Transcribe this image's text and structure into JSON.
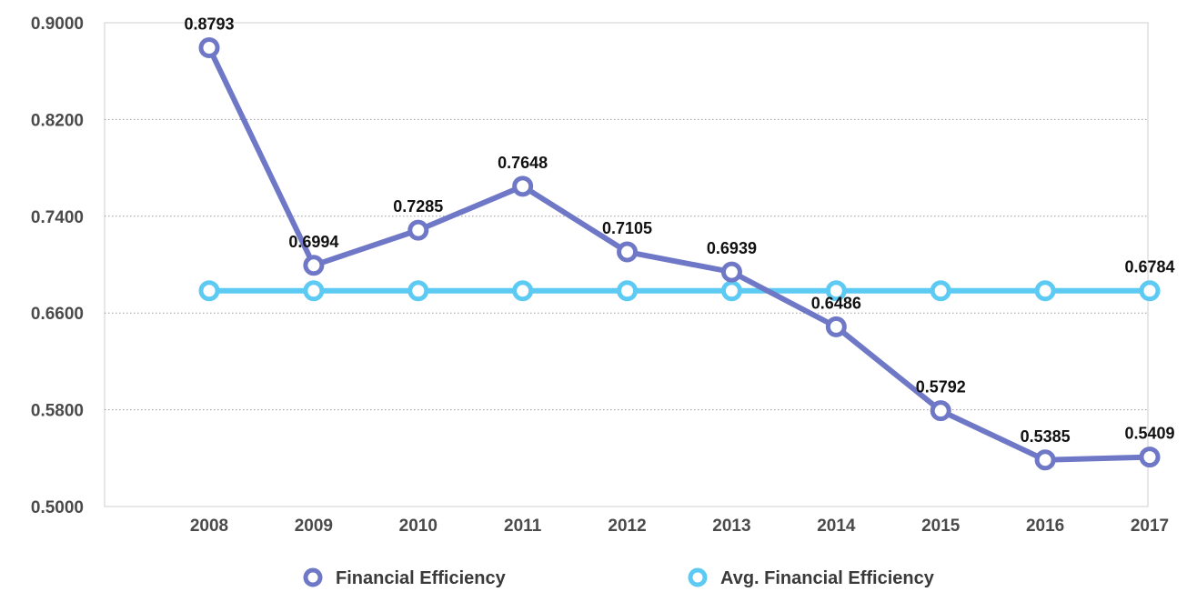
{
  "chart_data": {
    "type": "line",
    "categories": [
      "2008",
      "2009",
      "2010",
      "2011",
      "2012",
      "2013",
      "2014",
      "2015",
      "2016",
      "2017"
    ],
    "series": [
      {
        "name": "Financial Efficiency",
        "color": "#6f78c6",
        "values": [
          0.8793,
          0.6994,
          0.7285,
          0.7648,
          0.7105,
          0.6939,
          0.6486,
          0.5792,
          0.5385,
          0.5409
        ],
        "labels": [
          "0.8793",
          "0.6994",
          "0.7285",
          "0.7648",
          "0.7105",
          "0.6939",
          "0.6486",
          "0.5792",
          "0.5385",
          "0.5409"
        ]
      },
      {
        "name": "Avg. Financial Efficiency",
        "color": "#5ccaf2",
        "values": [
          0.6784,
          0.6784,
          0.6784,
          0.6784,
          0.6784,
          0.6784,
          0.6784,
          0.6784,
          0.6784,
          0.6784
        ],
        "labels": [
          "",
          "",
          "",
          "",
          "",
          "",
          "",
          "",
          "",
          "0.6784"
        ]
      }
    ],
    "yticks": [
      "0.9000",
      "0.8200",
      "0.7400",
      "0.6600",
      "0.5800",
      "0.5000"
    ],
    "ylim": [
      0.5,
      0.9
    ],
    "grid": true,
    "legend": "bottom",
    "title": "",
    "xlabel": "",
    "ylabel": ""
  }
}
